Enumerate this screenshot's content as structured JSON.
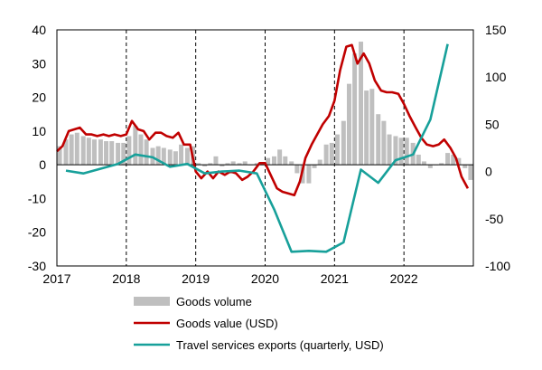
{
  "chart_data": {
    "type": "combo",
    "x_ticks": [
      "2017",
      "2018",
      "2019",
      "2020",
      "2021",
      "2022"
    ],
    "left_axis": {
      "ylim": [
        -30,
        40
      ],
      "ticks": [
        "40",
        "30",
        "20",
        "10",
        "0",
        "-10",
        "-20",
        "-30"
      ]
    },
    "right_axis": {
      "ylim": [
        -100,
        150
      ],
      "ticks": [
        "150",
        "100",
        "50",
        "0",
        "-50",
        "-100"
      ]
    },
    "vertical_dashed_lines_at": [
      "2018",
      "2019",
      "2020",
      "2021",
      "2022"
    ],
    "series": [
      {
        "name": "Goods volume",
        "kind": "bar",
        "axis": "left",
        "color": "#bfbfbf",
        "x": [
          2017.04,
          2017.13,
          2017.21,
          2017.29,
          2017.38,
          2017.46,
          2017.54,
          2017.63,
          2017.71,
          2017.79,
          2017.88,
          2017.96,
          2018.04,
          2018.13,
          2018.21,
          2018.29,
          2018.38,
          2018.46,
          2018.54,
          2018.63,
          2018.71,
          2018.79,
          2018.88,
          2018.96,
          2019.04,
          2019.13,
          2019.21,
          2019.29,
          2019.38,
          2019.46,
          2019.54,
          2019.63,
          2019.71,
          2019.79,
          2019.88,
          2019.96,
          2020.04,
          2020.13,
          2020.21,
          2020.29,
          2020.38,
          2020.46,
          2020.54,
          2020.63,
          2020.71,
          2020.79,
          2020.88,
          2020.96,
          2021.04,
          2021.13,
          2021.21,
          2021.29,
          2021.38,
          2021.46,
          2021.54,
          2021.63,
          2021.71,
          2021.79,
          2021.88,
          2021.96,
          2022.04,
          2022.13,
          2022.21,
          2022.29,
          2022.38,
          2022.46,
          2022.54,
          2022.63,
          2022.71,
          2022.79,
          2022.88,
          2022.96
        ],
        "values": [
          5.5,
          7.5,
          9,
          9.5,
          8.5,
          8,
          7.5,
          7.5,
          7,
          7,
          6.5,
          6.5,
          8.5,
          11.5,
          9,
          7.5,
          5,
          5.5,
          5,
          4.5,
          4,
          6,
          5,
          5.5,
          0.5,
          -0.5,
          0.5,
          2.5,
          -0.5,
          0.5,
          1,
          0.5,
          1,
          0,
          0.5,
          0,
          2,
          2.5,
          4.5,
          2.5,
          1,
          -2.5,
          -5.5,
          -5.5,
          -1,
          1.5,
          6,
          6.5,
          9,
          13,
          24,
          33,
          36.5,
          22,
          22.5,
          15,
          13,
          9,
          8.5,
          8,
          8,
          6.5,
          3,
          1,
          -1,
          0,
          0.5,
          3.5,
          3,
          2,
          -1,
          -4.5
        ]
      },
      {
        "name": "Goods value (USD)",
        "kind": "line",
        "axis": "left",
        "color": "#c00000",
        "x": [
          2017.0,
          2017.08,
          2017.17,
          2017.25,
          2017.33,
          2017.42,
          2017.5,
          2017.58,
          2017.67,
          2017.75,
          2017.83,
          2017.92,
          2018.0,
          2018.08,
          2018.17,
          2018.25,
          2018.33,
          2018.42,
          2018.5,
          2018.58,
          2018.67,
          2018.75,
          2018.83,
          2018.92,
          2019.0,
          2019.08,
          2019.17,
          2019.25,
          2019.33,
          2019.42,
          2019.5,
          2019.58,
          2019.67,
          2019.75,
          2019.83,
          2019.92,
          2020.0,
          2020.08,
          2020.17,
          2020.25,
          2020.33,
          2020.42,
          2020.5,
          2020.58,
          2020.67,
          2020.75,
          2020.83,
          2020.92,
          2021.0,
          2021.08,
          2021.17,
          2021.25,
          2021.33,
          2021.42,
          2021.5,
          2021.58,
          2021.67,
          2021.75,
          2021.83,
          2021.92,
          2022.0,
          2022.08,
          2022.17,
          2022.25,
          2022.33,
          2022.42,
          2022.5,
          2022.58,
          2022.67,
          2022.75,
          2022.83,
          2022.92
        ],
        "values": [
          4,
          5.5,
          10,
          10.5,
          11,
          9,
          9,
          8.5,
          9,
          8.5,
          9,
          8.5,
          9,
          13,
          10.5,
          10,
          7.5,
          9.5,
          9.5,
          8.5,
          8,
          9.5,
          6,
          6,
          -2,
          -4,
          -2,
          -4,
          -2,
          -3,
          -2,
          -2.5,
          -4.5,
          -3.5,
          -2,
          0.5,
          0.5,
          -3,
          -7,
          -8,
          -8.5,
          -9,
          -5,
          2,
          6,
          9,
          12,
          14.5,
          19,
          28,
          35,
          35.5,
          30,
          33,
          30,
          25,
          22,
          21.5,
          21.5,
          21,
          18,
          14.5,
          11,
          8,
          6,
          5.5,
          6,
          7.5,
          5,
          2,
          -3.5,
          -7
        ]
      },
      {
        "name": "Travel services exports (quarterly, USD)",
        "kind": "line",
        "axis": "right",
        "color": "#17a09a",
        "x": [
          2017.13,
          2017.38,
          2017.63,
          2017.88,
          2018.13,
          2018.38,
          2018.63,
          2018.88,
          2019.13,
          2019.38,
          2019.63,
          2019.88,
          2020.13,
          2020.38,
          2020.63,
          2020.88,
          2021.13,
          2021.38,
          2021.63,
          2021.88,
          2022.13,
          2022.38,
          2022.63,
          2022.88
        ],
        "values": [
          1,
          -2,
          3,
          8,
          18,
          15,
          5,
          8,
          -2,
          0,
          1,
          -2,
          -40,
          -85,
          -84,
          -85,
          -75,
          2,
          -12,
          12,
          18,
          55,
          135,
          null
        ]
      }
    ]
  }
}
